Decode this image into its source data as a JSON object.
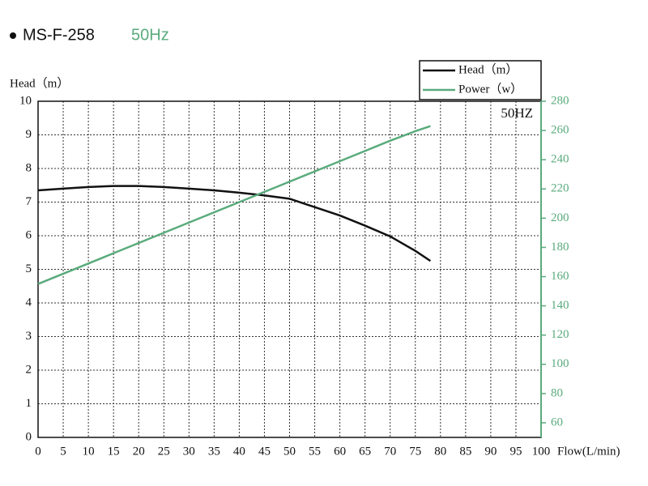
{
  "chart_data": {
    "type": "line",
    "title": "MS-F-258",
    "subtitle": "50Hz",
    "annotation": "50HZ",
    "y_label": "Head（m）",
    "x_label": "Flow(L/min)",
    "x": [
      0,
      5,
      10,
      15,
      20,
      25,
      30,
      35,
      40,
      45,
      50,
      55,
      60,
      65,
      70,
      75,
      78
    ],
    "series": [
      {
        "name": "Head（m）",
        "color": "#111111",
        "values": [
          7.35,
          7.4,
          7.45,
          7.48,
          7.48,
          7.45,
          7.4,
          7.35,
          7.28,
          7.2,
          7.1,
          6.85,
          6.6,
          6.3,
          5.98,
          5.55,
          5.25
        ]
      },
      {
        "name": "Power（w）",
        "color": "#5aab7c",
        "axis": "y2",
        "values": [
          155,
          162,
          169,
          176,
          183,
          190,
          197,
          204,
          211,
          218,
          225,
          232,
          239,
          246,
          253,
          259.5,
          263
        ]
      }
    ],
    "xlim": [
      0,
      100
    ],
    "xticks": [
      0,
      5,
      10,
      15,
      20,
      25,
      30,
      35,
      40,
      45,
      50,
      55,
      60,
      65,
      70,
      75,
      80,
      85,
      90,
      95,
      100
    ],
    "ylim": [
      0,
      10
    ],
    "yticks": [
      0,
      1,
      2,
      3,
      4,
      5,
      6,
      7,
      8,
      9,
      10
    ],
    "y2lim": [
      50,
      280
    ],
    "y2ticks": [
      60,
      80,
      100,
      120,
      140,
      160,
      180,
      200,
      220,
      240,
      260,
      280
    ],
    "grid": true
  }
}
